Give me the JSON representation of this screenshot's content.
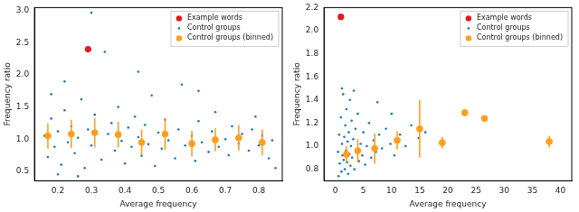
{
  "chart_data": [
    {
      "type": "scatter",
      "x_label": "Average frequency",
      "y_label": "Frequency ratio",
      "xlim": [
        0.13,
        0.87
      ],
      "ylim": [
        0.35,
        3.05
      ],
      "xticks": [
        0.2,
        0.3,
        0.4,
        0.5,
        0.6,
        0.7,
        0.8
      ],
      "yticks": [
        {
          "value": 0.5,
          "label": "0.5"
        },
        {
          "value": 1,
          "label": "1.0"
        },
        {
          "value": 1.5,
          "label": "1.5"
        },
        {
          "value": 2,
          "label": "2.0"
        },
        {
          "value": 2.5,
          "label": "2.5"
        },
        {
          "value": 3,
          "label": "3.0"
        }
      ],
      "grid": false,
      "legend": "upper right",
      "series": [
        {
          "name": "Example words",
          "color": "#e41a1c",
          "marker": "circle",
          "x": [
            0.29
          ],
          "values": [
            2.4
          ]
        },
        {
          "name": "Control groups",
          "color": "#1f77b4",
          "marker": "point",
          "x": [
            0.16,
            0.17,
            0.18,
            0.19,
            0.2,
            0.21,
            0.22,
            0.23,
            0.24,
            0.25,
            0.26,
            0.27,
            0.28,
            0.29,
            0.3,
            0.31,
            0.34,
            0.3,
            0.33,
            0.35,
            0.36,
            0.37,
            0.38,
            0.39,
            0.4,
            0.41,
            0.42,
            0.43,
            0.44,
            0.45,
            0.46,
            0.47,
            0.48,
            0.49,
            0.5,
            0.51,
            0.52,
            0.53,
            0.55,
            0.56,
            0.57,
            0.58,
            0.6,
            0.61,
            0.62,
            0.63,
            0.65,
            0.66,
            0.67,
            0.68,
            0.7,
            0.71,
            0.72,
            0.74,
            0.75,
            0.77,
            0.78,
            0.8,
            0.81,
            0.83,
            0.84,
            0.2,
            0.26,
            0.18,
            0.22,
            0.44,
            0.62,
            0.79,
            0.85
          ],
          "values": [
            1.05,
            0.72,
            1.32,
            0.88,
            1.12,
            0.6,
            1.45,
            0.95,
            1.2,
            0.78,
            1.02,
            1.62,
            0.55,
            1.15,
            0.9,
            1.38,
            2.36,
            2.97,
            0.68,
            1.08,
            1.25,
            0.82,
            1.5,
            0.97,
            0.62,
            1.18,
            0.88,
            1.35,
            1.03,
            0.74,
            1.22,
            0.92,
            1.68,
            0.58,
            1.1,
            0.85,
            1.3,
            0.98,
            0.7,
            1.15,
            1.85,
            0.9,
            1.05,
            0.66,
            1.28,
            0.95,
            0.8,
            1.12,
            1.42,
            0.88,
            1.0,
            0.75,
            1.2,
            0.93,
            1.08,
            0.82,
            1.15,
            0.9,
            1.05,
            0.7,
            0.98,
            0.45,
            0.42,
            1.7,
            1.9,
            2.05,
            1.75,
            1.35,
            0.55
          ]
        },
        {
          "name": "Control groups (binned)",
          "color": "#ff9f1c",
          "marker": "circle",
          "x": [
            0.17,
            0.24,
            0.31,
            0.38,
            0.45,
            0.52,
            0.6,
            0.67,
            0.74,
            0.81
          ],
          "values": [
            1.05,
            1.08,
            1.1,
            1.07,
            0.95,
            1.08,
            0.93,
            0.99,
            1.02,
            0.95
          ],
          "errors": [
            0.2,
            0.22,
            0.23,
            0.2,
            0.2,
            0.25,
            0.2,
            0.18,
            0.2,
            0.2
          ]
        }
      ]
    },
    {
      "type": "scatter",
      "x_label": "Average frequency",
      "y_label": "Frequency ratio",
      "xlim": [
        -2,
        42
      ],
      "ylim": [
        0.7,
        2.2
      ],
      "xticks": [
        0,
        5,
        10,
        15,
        20,
        25,
        30,
        35,
        40
      ],
      "yticks": [
        {
          "value": 0.8,
          "label": "0.8"
        },
        {
          "value": 1,
          "label": "1.0"
        },
        {
          "value": 1.2,
          "label": "1.2"
        },
        {
          "value": 1.4,
          "label": "1.4"
        },
        {
          "value": 1.6,
          "label": "1.6"
        },
        {
          "value": 1.8,
          "label": "1.8"
        },
        {
          "value": 2,
          "label": "2.0"
        },
        {
          "value": 2.2,
          "label": "2.2"
        }
      ],
      "grid": false,
      "legend": "upper right",
      "series": [
        {
          "name": "Example words",
          "color": "#e41a1c",
          "marker": "circle",
          "x": [
            1
          ],
          "values": [
            2.12
          ]
        },
        {
          "name": "Control groups",
          "color": "#1f77b4",
          "marker": "point",
          "x": [
            0.5,
            0.7,
            0.8,
            1.0,
            1.1,
            1.2,
            1.3,
            1.4,
            1.5,
            1.6,
            1.7,
            1.8,
            1.9,
            2.0,
            2.1,
            2.2,
            2.3,
            2.4,
            2.5,
            2.6,
            2.7,
            2.8,
            2.9,
            3.0,
            3.2,
            3.4,
            3.6,
            3.8,
            4.0,
            4.2,
            4.5,
            4.8,
            5.0,
            5.3,
            5.6,
            6.0,
            6.4,
            6.8,
            7.2,
            7.8,
            8.3,
            9.0,
            9.8,
            10.5,
            11.5,
            12.5,
            13.5,
            14.8,
            16,
            1.2,
            0.6,
            3.3,
            7.5,
            10
          ],
          "values": [
            0.95,
            1.1,
            0.85,
            1.25,
            0.78,
            1.02,
            0.92,
            1.45,
            0.88,
            1.08,
            0.8,
            1.18,
            0.96,
            1.32,
            0.86,
            1.04,
            0.76,
            1.12,
            0.93,
            1.4,
            0.83,
            1.0,
            1.22,
            0.9,
            1.06,
            0.8,
            1.15,
            0.95,
            1.28,
            0.87,
            1.02,
            0.92,
            1.12,
            0.84,
            1.0,
            1.2,
            0.9,
            1.05,
            0.95,
            1.1,
            0.98,
            1.15,
            1.02,
            0.92,
            1.1,
            1.0,
            1.18,
            1.07,
            1.12,
            1.5,
            0.74,
            1.48,
            1.38,
            1.28
          ]
        },
        {
          "name": "Control groups (binned)",
          "color": "#ff9f1c",
          "marker": "circle",
          "x": [
            2,
            4,
            7,
            11,
            15,
            19,
            23,
            26.5,
            38
          ],
          "values": [
            0.93,
            0.96,
            0.98,
            1.05,
            1.15,
            1.03,
            1.29,
            1.24,
            1.04
          ],
          "errors": [
            0.07,
            0.1,
            0.13,
            0.08,
            0.25,
            0.05,
            0.01,
            0.01,
            0.05
          ]
        }
      ]
    }
  ]
}
